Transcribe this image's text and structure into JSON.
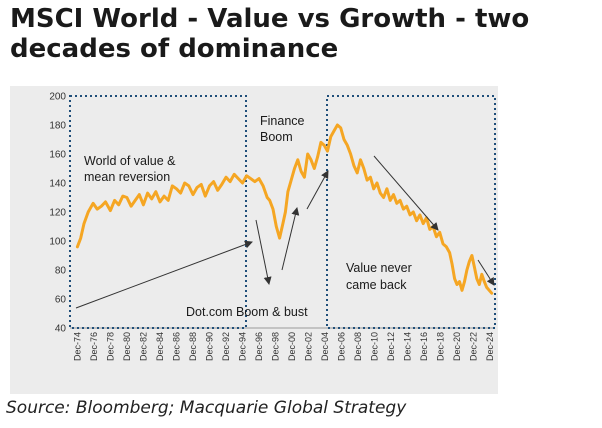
{
  "header": {
    "title": "MSCI World - Value vs Growth - two decades of dominance"
  },
  "footer": {
    "source": "Source: Bloomberg; Macquarie Global Strategy"
  },
  "colors": {
    "line": "#f5a623",
    "box": "#1f4e79",
    "arrow": "#333333"
  },
  "chart_data": {
    "type": "line",
    "title": "MSCI World - Value vs Growth - two decades of dominance",
    "xlabel": "",
    "ylabel": "",
    "ylim": [
      40,
      200
    ],
    "xlim": [
      1974,
      2025.5
    ],
    "yticks": [
      40,
      60,
      80,
      100,
      120,
      140,
      160,
      180,
      200
    ],
    "xtick_labels": [
      "Dec-74",
      "Dec-76",
      "Dec-78",
      "Dec-80",
      "Dec-82",
      "Dec-84",
      "Dec-86",
      "Dec-88",
      "Dec-90",
      "Dec-92",
      "Dec-94",
      "Dec-96",
      "Dec-98",
      "Dec-00",
      "Dec-02",
      "Dec-04",
      "Dec-06",
      "Dec-08",
      "Dec-10",
      "Dec-12",
      "Dec-14",
      "Dec-16",
      "Dec-18",
      "Dec-20",
      "Dec-22",
      "Dec-24"
    ],
    "xtick_years": [
      1974,
      1976,
      1978,
      1980,
      1982,
      1984,
      1986,
      1988,
      1990,
      1992,
      1994,
      1996,
      1998,
      2000,
      2002,
      2004,
      2006,
      2008,
      2010,
      2012,
      2014,
      2016,
      2018,
      2020,
      2022,
      2024
    ],
    "series": [
      {
        "name": "MSCI World Value vs Growth",
        "x": [
          1974.9,
          1975.3,
          1975.7,
          1976.2,
          1976.8,
          1977.3,
          1977.8,
          1978.3,
          1978.9,
          1979.4,
          1979.9,
          1980.4,
          1980.9,
          1981.4,
          1981.9,
          1982.4,
          1982.9,
          1983.4,
          1983.9,
          1984.4,
          1984.9,
          1985.4,
          1985.9,
          1986.4,
          1986.9,
          1987.4,
          1987.9,
          1988.4,
          1988.9,
          1989.4,
          1989.9,
          1990.4,
          1990.9,
          1991.4,
          1991.9,
          1992.4,
          1992.9,
          1993.4,
          1993.9,
          1994.4,
          1994.9,
          1995.4,
          1995.9,
          1996.4,
          1996.9,
          1997.4,
          1997.9,
          1998.2,
          1998.6,
          1999.0,
          1999.4,
          1999.8,
          2000.1,
          2000.4,
          2000.8,
          2001.2,
          2001.6,
          2002.0,
          2002.4,
          2002.8,
          2003.2,
          2003.6,
          2004.0,
          2004.4,
          2004.8,
          2005.2,
          2005.6,
          2006.0,
          2006.4,
          2006.8,
          2007.2,
          2007.6,
          2008.0,
          2008.4,
          2008.8,
          2009.2,
          2009.6,
          2010.0,
          2010.4,
          2010.8,
          2011.2,
          2011.6,
          2012.0,
          2012.4,
          2012.8,
          2013.2,
          2013.6,
          2014.0,
          2014.4,
          2014.8,
          2015.2,
          2015.6,
          2016.0,
          2016.4,
          2016.8,
          2017.2,
          2017.6,
          2018.0,
          2018.4,
          2018.8,
          2019.2,
          2019.6,
          2020.0,
          2020.3,
          2020.6,
          2020.9,
          2021.2,
          2021.5,
          2021.8,
          2022.1,
          2022.4,
          2022.7,
          2023.0,
          2023.3,
          2023.6,
          2023.9,
          2024.2,
          2024.5,
          2024.8,
          2025.1
        ],
        "values": [
          96,
          102,
          112,
          120,
          126,
          122,
          124,
          127,
          121,
          128,
          125,
          131,
          130,
          124,
          128,
          132,
          125,
          133,
          129,
          134,
          127,
          131,
          128,
          138,
          136,
          133,
          140,
          138,
          132,
          137,
          139,
          131,
          138,
          141,
          135,
          139,
          144,
          141,
          146,
          143,
          140,
          145,
          143,
          141,
          143,
          138,
          130,
          128,
          122,
          110,
          102,
          112,
          120,
          134,
          142,
          150,
          156,
          148,
          144,
          160,
          156,
          150,
          158,
          168,
          166,
          162,
          172,
          176,
          180,
          178,
          170,
          166,
          160,
          152,
          147,
          156,
          150,
          142,
          144,
          136,
          140,
          133,
          130,
          136,
          128,
          132,
          126,
          128,
          122,
          124,
          118,
          120,
          114,
          118,
          112,
          116,
          108,
          110,
          103,
          106,
          98,
          96,
          92,
          84,
          74,
          70,
          72,
          66,
          72,
          80,
          86,
          90,
          82,
          74,
          70,
          77,
          72,
          68,
          66,
          64
        ]
      }
    ],
    "annotations": {
      "world_of_value_line1": "World of value &",
      "world_of_value_line2": "mean reversion",
      "finance_boom_line1": "Finance",
      "finance_boom_line2": "Boom",
      "dotcom": "Dot.com Boom & bust",
      "value_never_line1": "Value never",
      "value_never_line2": "came back"
    }
  }
}
